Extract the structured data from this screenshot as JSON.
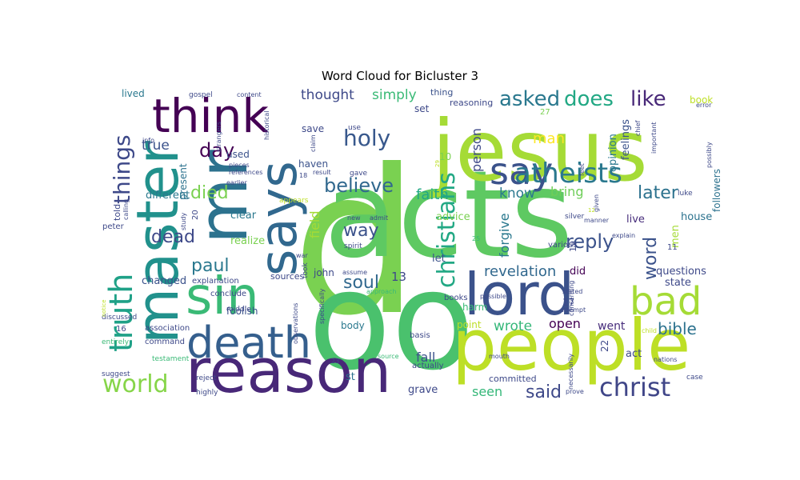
{
  "chart_data": {
    "type": "wordcloud",
    "title": "Word Cloud for Bicluster 3",
    "background": "#ffffff",
    "colormap": "viridis",
    "words": [
      {
        "text": "d",
        "size": 250,
        "color": "#7ad151"
      },
      {
        "text": "acts",
        "size": 150,
        "color": "#5ec962"
      },
      {
        "text": "jesus",
        "size": 105,
        "color": "#a5db36"
      },
      {
        "text": "oo",
        "size": 170,
        "color": "#4ac16d"
      },
      {
        "text": "people",
        "size": 88,
        "color": "#bddf26"
      },
      {
        "text": "mr",
        "size": 85,
        "color": "#2c728e"
      },
      {
        "text": "master",
        "size": 72,
        "color": "#21918c"
      },
      {
        "text": "reason",
        "size": 76,
        "color": "#482878"
      },
      {
        "text": "lord",
        "size": 72,
        "color": "#3b528b"
      },
      {
        "text": "says",
        "size": 64,
        "color": "#31688e"
      },
      {
        "text": "sin",
        "size": 64,
        "color": "#3aba76"
      },
      {
        "text": "think",
        "size": 58,
        "color": "#440154"
      },
      {
        "text": "death",
        "size": 54,
        "color": "#355f8d"
      },
      {
        "text": "bad",
        "size": 48,
        "color": "#a5db36"
      },
      {
        "text": "say",
        "size": 46,
        "color": "#3b528b"
      },
      {
        "text": "truth",
        "size": 40,
        "color": "#1fa187"
      },
      {
        "text": "atheists",
        "size": 34,
        "color": "#2a788e"
      },
      {
        "text": "christians",
        "size": 30,
        "color": "#22a884"
      },
      {
        "text": "christ",
        "size": 32,
        "color": "#404688"
      },
      {
        "text": "world",
        "size": 30,
        "color": "#86d549"
      },
      {
        "text": "things",
        "size": 28,
        "color": "#3e4989"
      },
      {
        "text": "holy",
        "size": 28,
        "color": "#38588c"
      },
      {
        "text": "asked",
        "size": 26,
        "color": "#2a788e"
      },
      {
        "text": "does",
        "size": 26,
        "color": "#22a884"
      },
      {
        "text": "like",
        "size": 26,
        "color": "#482878"
      },
      {
        "text": "believe",
        "size": 24,
        "color": "#31688e"
      },
      {
        "text": "reply",
        "size": 24,
        "color": "#3b528b"
      },
      {
        "text": "day",
        "size": 24,
        "color": "#440154"
      },
      {
        "text": "word",
        "size": 22,
        "color": "#3b528b"
      },
      {
        "text": "later",
        "size": 22,
        "color": "#2c728e"
      },
      {
        "text": "died",
        "size": 22,
        "color": "#7ad151"
      },
      {
        "text": "way",
        "size": 22,
        "color": "#3b528b"
      },
      {
        "text": "soul",
        "size": 22,
        "color": "#31688e"
      },
      {
        "text": "paul",
        "size": 22,
        "color": "#2a788e"
      },
      {
        "text": "dead",
        "size": 22,
        "color": "#3e4989"
      },
      {
        "text": "said",
        "size": 22,
        "color": "#3e4989"
      },
      {
        "text": "bible",
        "size": 20,
        "color": "#2c728e"
      },
      {
        "text": "faith",
        "size": 18,
        "color": "#22a884"
      },
      {
        "text": "revelation",
        "size": 18,
        "color": "#31688e"
      },
      {
        "text": "man",
        "size": 18,
        "color": "#fde725"
      },
      {
        "text": "true",
        "size": 17,
        "color": "#3b528b"
      },
      {
        "text": "know",
        "size": 17,
        "color": "#2a788e"
      },
      {
        "text": "thought",
        "size": 17,
        "color": "#3e4989"
      },
      {
        "text": "simply",
        "size": 17,
        "color": "#3aba76"
      },
      {
        "text": "wrote",
        "size": 17,
        "color": "#35b779"
      },
      {
        "text": "person",
        "size": 16,
        "color": "#3e4989"
      },
      {
        "text": "forgive",
        "size": 16,
        "color": "#2a788e"
      },
      {
        "text": "bring",
        "size": 16,
        "color": "#6ece58"
      },
      {
        "text": "fall",
        "size": 16,
        "color": "#3b528b"
      },
      {
        "text": "seen",
        "size": 16,
        "color": "#35b779"
      },
      {
        "text": "field",
        "size": 16,
        "color": "#a5db36"
      },
      {
        "text": "open",
        "size": 16,
        "color": "#440154"
      },
      {
        "text": "went",
        "size": 14,
        "color": "#472d7b"
      },
      {
        "text": "different",
        "size": 13,
        "color": "#2a788e"
      },
      {
        "text": "clear",
        "size": 13,
        "color": "#2a788e"
      },
      {
        "text": "realize",
        "size": 13,
        "color": "#7ad151"
      },
      {
        "text": "changed",
        "size": 13,
        "color": "#3b528b"
      },
      {
        "text": "questions",
        "size": 13,
        "color": "#3e4989"
      },
      {
        "text": "feelings",
        "size": 13,
        "color": "#3b528b"
      },
      {
        "text": "opinion",
        "size": 13,
        "color": "#2a788e"
      },
      {
        "text": "house",
        "size": 13,
        "color": "#2c728e"
      },
      {
        "text": "live",
        "size": 13,
        "color": "#472d7b"
      },
      {
        "text": "men",
        "size": 13,
        "color": "#a5db36"
      },
      {
        "text": "state",
        "size": 13,
        "color": "#3e4989"
      },
      {
        "text": "followers",
        "size": 12,
        "color": "#2c728e"
      },
      {
        "text": "book",
        "size": 12,
        "color": "#bddf26"
      },
      {
        "text": "advice",
        "size": 13,
        "color": "#7ad151"
      },
      {
        "text": "let",
        "size": 13,
        "color": "#3b528b"
      },
      {
        "text": "grave",
        "size": 13,
        "color": "#3e4989"
      },
      {
        "text": "act",
        "size": 13,
        "color": "#3e4989"
      },
      {
        "text": "did",
        "size": 13,
        "color": "#440154"
      },
      {
        "text": "harm",
        "size": 12,
        "color": "#3aba76"
      },
      {
        "text": "point",
        "size": 12,
        "color": "#bddf26"
      },
      {
        "text": "body",
        "size": 12,
        "color": "#2a788e"
      },
      {
        "text": "st",
        "size": 13,
        "color": "#2c728e"
      },
      {
        "text": "john",
        "size": 12,
        "color": "#3e4989"
      },
      {
        "text": "sources",
        "size": 11,
        "color": "#3e4989"
      },
      {
        "text": "save",
        "size": 12,
        "color": "#3e4989"
      },
      {
        "text": "haven",
        "size": 12,
        "color": "#3b528b"
      },
      {
        "text": "used",
        "size": 12,
        "color": "#3b528b"
      },
      {
        "text": "present",
        "size": 12,
        "color": "#2c728e"
      },
      {
        "text": "told",
        "size": 11,
        "color": "#3e4989"
      },
      {
        "text": "lived",
        "size": 12,
        "color": "#2a788e"
      },
      {
        "text": "set",
        "size": 12,
        "color": "#3e4989"
      },
      {
        "text": "reasoning",
        "size": 11,
        "color": "#3e4989"
      },
      {
        "text": "thing",
        "size": 11,
        "color": "#3b528b"
      },
      {
        "text": "committed",
        "size": 11,
        "color": "#3e4989"
      },
      {
        "text": "actually",
        "size": 10,
        "color": "#3e4989"
      },
      {
        "text": "basis",
        "size": 10,
        "color": "#3e4989"
      },
      {
        "text": "books",
        "size": 10,
        "color": "#3e4989"
      },
      {
        "text": "foolish",
        "size": 12,
        "color": "#3b528b"
      },
      {
        "text": "command",
        "size": 10,
        "color": "#3e4989"
      },
      {
        "text": "association",
        "size": 10,
        "color": "#3e4989"
      },
      {
        "text": "conclude",
        "size": 10,
        "color": "#3e4989"
      },
      {
        "text": "explanation",
        "size": 10,
        "color": "#3e4989"
      },
      {
        "text": "middle",
        "size": 9,
        "color": "#3e4989"
      },
      {
        "text": "discussed",
        "size": 9,
        "color": "#3e4989"
      },
      {
        "text": "entirely",
        "size": 9,
        "color": "#3aba76"
      },
      {
        "text": "testament",
        "size": 9,
        "color": "#3aba76"
      },
      {
        "text": "suggest",
        "size": 9,
        "color": "#3e4989"
      },
      {
        "text": "reject",
        "size": 9,
        "color": "#3e4989"
      },
      {
        "text": "highly",
        "size": 9,
        "color": "#3e4989"
      },
      {
        "text": "peter",
        "size": 10,
        "color": "#3e4989"
      },
      {
        "text": "calling",
        "size": 8,
        "color": "#3e4989"
      },
      {
        "text": "study",
        "size": 8,
        "color": "#3e4989"
      },
      {
        "text": "info",
        "size": 8,
        "color": "#3e4989"
      },
      {
        "text": "gospel",
        "size": 9,
        "color": "#3e4989"
      },
      {
        "text": "content",
        "size": 8,
        "color": "#3e4989"
      },
      {
        "text": "historical",
        "size": 8,
        "color": "#3e4989"
      },
      {
        "text": "strangers",
        "size": 8,
        "color": "#3e4989"
      },
      {
        "text": "pieces",
        "size": 8,
        "color": "#3e4989"
      },
      {
        "text": "references",
        "size": 8,
        "color": "#3e4989"
      },
      {
        "text": "earlier",
        "size": 8,
        "color": "#3e4989"
      },
      {
        "text": "appears",
        "size": 9,
        "color": "#bddf26"
      },
      {
        "text": "result",
        "size": 8,
        "color": "#3e4989"
      },
      {
        "text": "claim",
        "size": 8,
        "color": "#3e4989"
      },
      {
        "text": "use",
        "size": 9,
        "color": "#3e4989"
      },
      {
        "text": "gave",
        "size": 9,
        "color": "#3e4989"
      },
      {
        "text": "new",
        "size": 8,
        "color": "#3e4989"
      },
      {
        "text": "admit",
        "size": 8,
        "color": "#3e4989"
      },
      {
        "text": "spirit",
        "size": 9,
        "color": "#3e4989"
      },
      {
        "text": "war",
        "size": 8,
        "color": "#3e4989"
      },
      {
        "text": "assume",
        "size": 8,
        "color": "#3e4989"
      },
      {
        "text": "approach",
        "size": 8,
        "color": "#3aba76"
      },
      {
        "text": "observations",
        "size": 8,
        "color": "#3e4989"
      },
      {
        "text": "specifically",
        "size": 8,
        "color": "#3e4989"
      },
      {
        "text": "took",
        "size": 9,
        "color": "#3e4989"
      },
      {
        "text": "source",
        "size": 8,
        "color": "#3aba76"
      },
      {
        "text": "mouth",
        "size": 8,
        "color": "#3e4989"
      },
      {
        "text": "possible",
        "size": 8,
        "color": "#3e4989"
      },
      {
        "text": "concerning",
        "size": 8,
        "color": "#3e4989"
      },
      {
        "text": "necessarily",
        "size": 8,
        "color": "#3e4989"
      },
      {
        "text": "stated",
        "size": 8,
        "color": "#3e4989"
      },
      {
        "text": "attempt",
        "size": 8,
        "color": "#3e4989"
      },
      {
        "text": "prove",
        "size": 8,
        "color": "#3e4989"
      },
      {
        "text": "various",
        "size": 10,
        "color": "#3e4989"
      },
      {
        "text": "silver",
        "size": 9,
        "color": "#3e4989"
      },
      {
        "text": "given",
        "size": 8,
        "color": "#3e4989"
      },
      {
        "text": "manner",
        "size": 8,
        "color": "#3e4989"
      },
      {
        "text": "feet",
        "size": 8,
        "color": "#3e4989"
      },
      {
        "text": "explain",
        "size": 8,
        "color": "#3e4989"
      },
      {
        "text": "luke",
        "size": 9,
        "color": "#3e4989"
      },
      {
        "text": "nations",
        "size": 8,
        "color": "#3e4989"
      },
      {
        "text": "child",
        "size": 8,
        "color": "#bddf26"
      },
      {
        "text": "case",
        "size": 9,
        "color": "#3e4989"
      },
      {
        "text": "important",
        "size": 8,
        "color": "#3e4989"
      },
      {
        "text": "chief",
        "size": 8,
        "color": "#3e4989"
      },
      {
        "text": "possibly",
        "size": 8,
        "color": "#3e4989"
      },
      {
        "text": "error",
        "size": 8,
        "color": "#3e4989"
      },
      {
        "text": "notice",
        "size": 7,
        "color": "#bddf26"
      },
      {
        "text": "13",
        "size": 15,
        "color": "#3e4989"
      },
      {
        "text": "10",
        "size": 12,
        "color": "#7ad151"
      },
      {
        "text": "17",
        "size": 12,
        "color": "#3e4989"
      },
      {
        "text": "19",
        "size": 11,
        "color": "#3e4989"
      },
      {
        "text": "22",
        "size": 12,
        "color": "#3e4989"
      },
      {
        "text": "27",
        "size": 10,
        "color": "#7ad151"
      },
      {
        "text": "20",
        "size": 10,
        "color": "#3e4989"
      },
      {
        "text": "16",
        "size": 10,
        "color": "#3e4989"
      },
      {
        "text": "11",
        "size": 10,
        "color": "#3e4989"
      },
      {
        "text": "25",
        "size": 8,
        "color": "#3aba76"
      },
      {
        "text": "18",
        "size": 8,
        "color": "#3e4989"
      },
      {
        "text": "23",
        "size": 8,
        "color": "#3e4989"
      },
      {
        "text": "29",
        "size": 7,
        "color": "#bddf26"
      },
      {
        "text": "12",
        "size": 7,
        "color": "#bddf26"
      }
    ]
  }
}
